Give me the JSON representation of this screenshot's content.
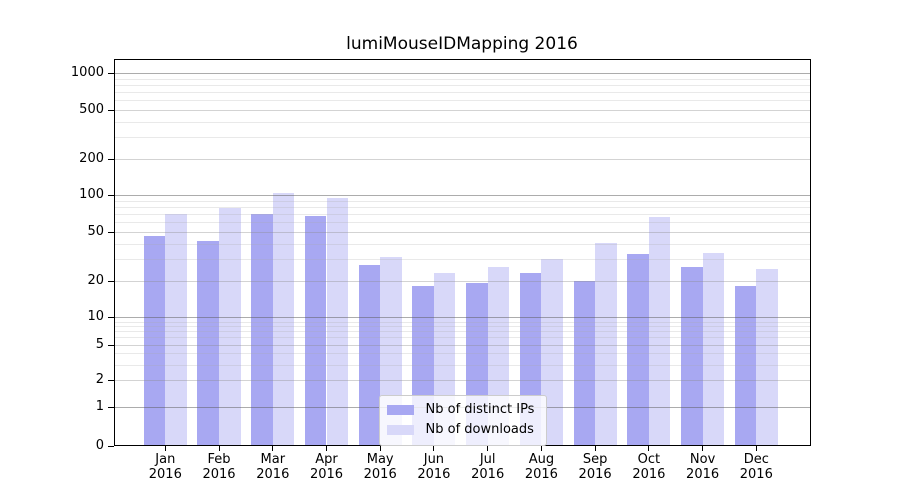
{
  "chart_data": {
    "type": "bar",
    "title": "lumiMouseIDMapping 2016",
    "categories": [
      "Jan 2016",
      "Feb 2016",
      "Mar 2016",
      "Apr 2016",
      "May 2016",
      "Jun 2016",
      "Jul 2016",
      "Aug 2016",
      "Sep 2016",
      "Oct 2016",
      "Nov 2016",
      "Dec 2016"
    ],
    "series": [
      {
        "name": "Nb of distinct IPs",
        "color": "#a8a8f2",
        "values": [
          46,
          42,
          70,
          68,
          27,
          18,
          19,
          23,
          20,
          33,
          26,
          18
        ]
      },
      {
        "name": "Nb of downloads",
        "color": "#d8d8f9",
        "values": [
          70,
          79,
          105,
          95,
          31,
          23,
          26,
          30,
          41,
          66,
          34,
          25
        ]
      }
    ],
    "xlabel": "",
    "ylabel": "",
    "yscale": "log-like (0,1,2,5,10,20,50,100,200,500,1000)",
    "ylim": [
      0,
      1300
    ],
    "yticks": [
      0,
      1,
      2,
      5,
      10,
      20,
      50,
      100,
      200,
      500,
      1000
    ],
    "yticks_minor": [
      3,
      4,
      6,
      7,
      8,
      9,
      30,
      40,
      60,
      70,
      80,
      90,
      300,
      400,
      600,
      700,
      800,
      900
    ],
    "grid": true,
    "legend_position": "lower center"
  },
  "legend": {
    "items": [
      {
        "label": "Nb of distinct IPs"
      },
      {
        "label": "Nb of downloads"
      }
    ]
  },
  "colors": {
    "bar_ips": "#a8a8f2",
    "bar_downloads": "#d8d8f9",
    "grid_major": "#b0b0b0",
    "grid_mid": "#d5d5d5",
    "grid_minor": "#ececec",
    "axis": "#000000",
    "background": "#ffffff"
  }
}
